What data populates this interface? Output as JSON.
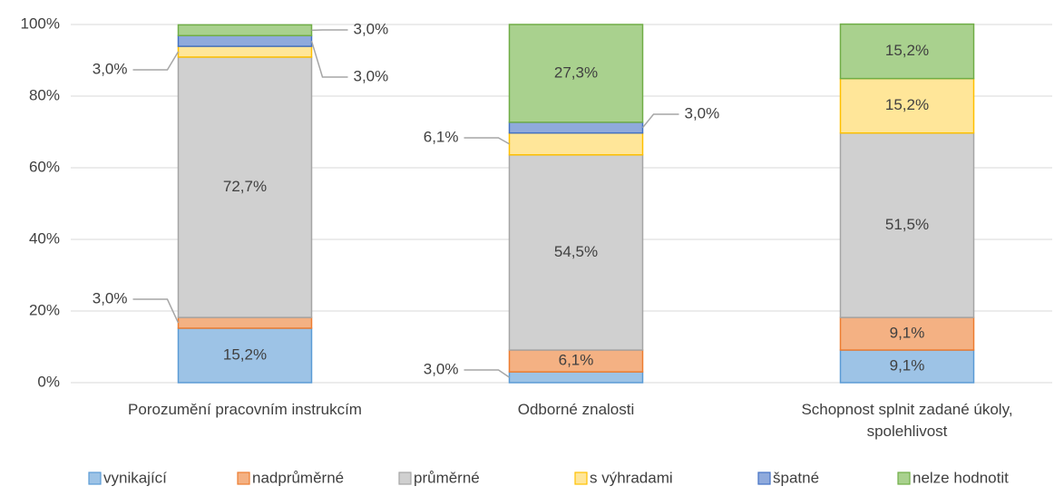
{
  "chart_data": {
    "type": "stacked-bar",
    "categories": [
      "Porozumění pracovním instrukcím",
      "Odborné znalosti",
      "Schopnost splnit zadané úkoly, spolehlivost"
    ],
    "series": [
      {
        "name": "vynikající",
        "color": "#9dc3e6",
        "values": [
          15.2,
          3.0,
          9.1
        ],
        "value_labels": [
          "15,2%",
          "3,0%",
          "9,1%"
        ]
      },
      {
        "name": "nadprůměrné",
        "color": "#f4b183",
        "values": [
          3.0,
          6.1,
          9.1
        ],
        "value_labels": [
          "3,0%",
          "6,1%",
          "9,1%"
        ]
      },
      {
        "name": "průměrné",
        "color": "#d0d0d0",
        "values": [
          72.7,
          54.5,
          51.5
        ],
        "value_labels": [
          "72,7%",
          "54,5%",
          "51,5%"
        ]
      },
      {
        "name": "s výhradami",
        "color": "#ffe699",
        "values": [
          3.0,
          6.1,
          15.2
        ],
        "value_labels": [
          "3,0%",
          "6,1%",
          "15,2%"
        ]
      },
      {
        "name": "špatné",
        "color": "#8faadc",
        "values": [
          3.0,
          3.0,
          null
        ],
        "value_labels": [
          "3,0%",
          "3,0%",
          null
        ]
      },
      {
        "name": "nelze hodnotit",
        "color": "#a9d18e",
        "values": [
          3.0,
          27.3,
          15.2
        ],
        "value_labels": [
          "3,0%",
          "27,3%",
          "15,2%"
        ]
      }
    ],
    "ylim": [
      0,
      100
    ],
    "yticks": [
      {
        "value": 0,
        "label": "0%"
      },
      {
        "value": 20,
        "label": "20%"
      },
      {
        "value": 40,
        "label": "40%"
      },
      {
        "value": 60,
        "label": "60%"
      },
      {
        "value": 80,
        "label": "80%"
      },
      {
        "value": 100,
        "label": "100%"
      }
    ],
    "legend": "bottom"
  }
}
